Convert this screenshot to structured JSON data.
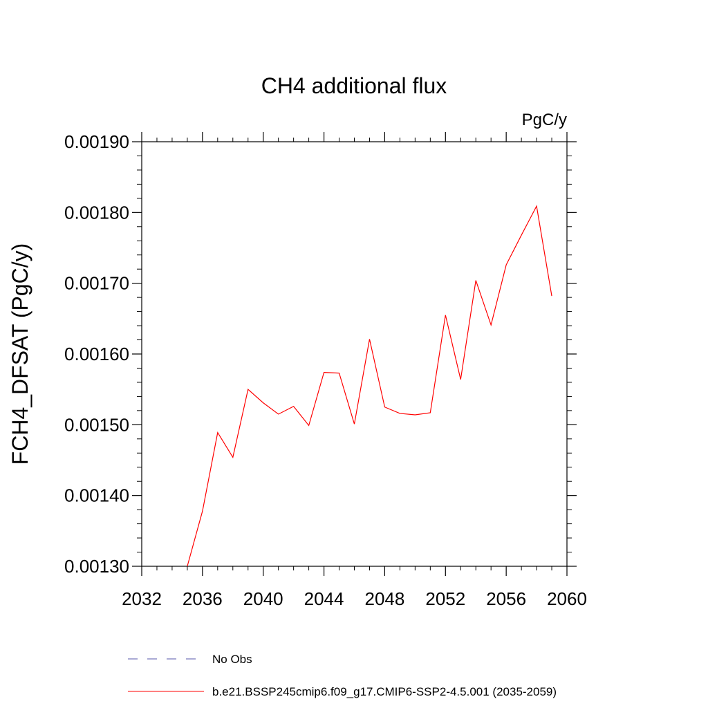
{
  "chart_data": {
    "type": "line",
    "title": "CH4 additional flux",
    "units": "PgC/y",
    "ylabel": "FCH4_DFSAT  (PgC/y)",
    "xlabel": "",
    "xlim": [
      2032,
      2060
    ],
    "ylim": [
      0.0013,
      0.0019
    ],
    "x_ticks": [
      2032,
      2036,
      2040,
      2044,
      2048,
      2052,
      2056,
      2060
    ],
    "x_tick_labels": [
      "2032",
      "2036",
      "2040",
      "2044",
      "2048",
      "2052",
      "2056",
      "2060"
    ],
    "y_ticks": [
      0.0013,
      0.0014,
      0.0015,
      0.0016,
      0.0017,
      0.0018,
      0.0019
    ],
    "y_tick_labels": [
      "0.00130",
      "0.00140",
      "0.00150",
      "0.00160",
      "0.00170",
      "0.00180",
      "0.00190"
    ],
    "grid": false,
    "series": [
      {
        "name": "b.e21.BSSP245cmip6.f09_g17.CMIP6-SSP2-4.5.001 (2035-2059)",
        "color": "#ff0000",
        "x": [
          2035,
          2036,
          2037,
          2038,
          2039,
          2040,
          2041,
          2042,
          2043,
          2044,
          2045,
          2046,
          2047,
          2048,
          2049,
          2050,
          2051,
          2052,
          2053,
          2054,
          2055,
          2056,
          2057,
          2058,
          2059
        ],
        "y": [
          0.0013,
          0.001378,
          0.001489,
          0.001454,
          0.00155,
          0.001531,
          0.001515,
          0.001526,
          0.001499,
          0.001574,
          0.001573,
          0.001501,
          0.001621,
          0.001525,
          0.001516,
          0.001514,
          0.001517,
          0.001655,
          0.001564,
          0.001704,
          0.001641,
          0.001726,
          0.001768,
          0.001809,
          0.001682
        ]
      }
    ],
    "legend": {
      "placement": "bottom",
      "entries": [
        {
          "label": "No Obs",
          "color": "#5555aa",
          "style": "dashed"
        },
        {
          "label": "b.e21.BSSP245cmip6.f09_g17.CMIP6-SSP2-4.5.001 (2035-2059)",
          "color": "#ff0000",
          "style": "solid"
        }
      ]
    }
  }
}
